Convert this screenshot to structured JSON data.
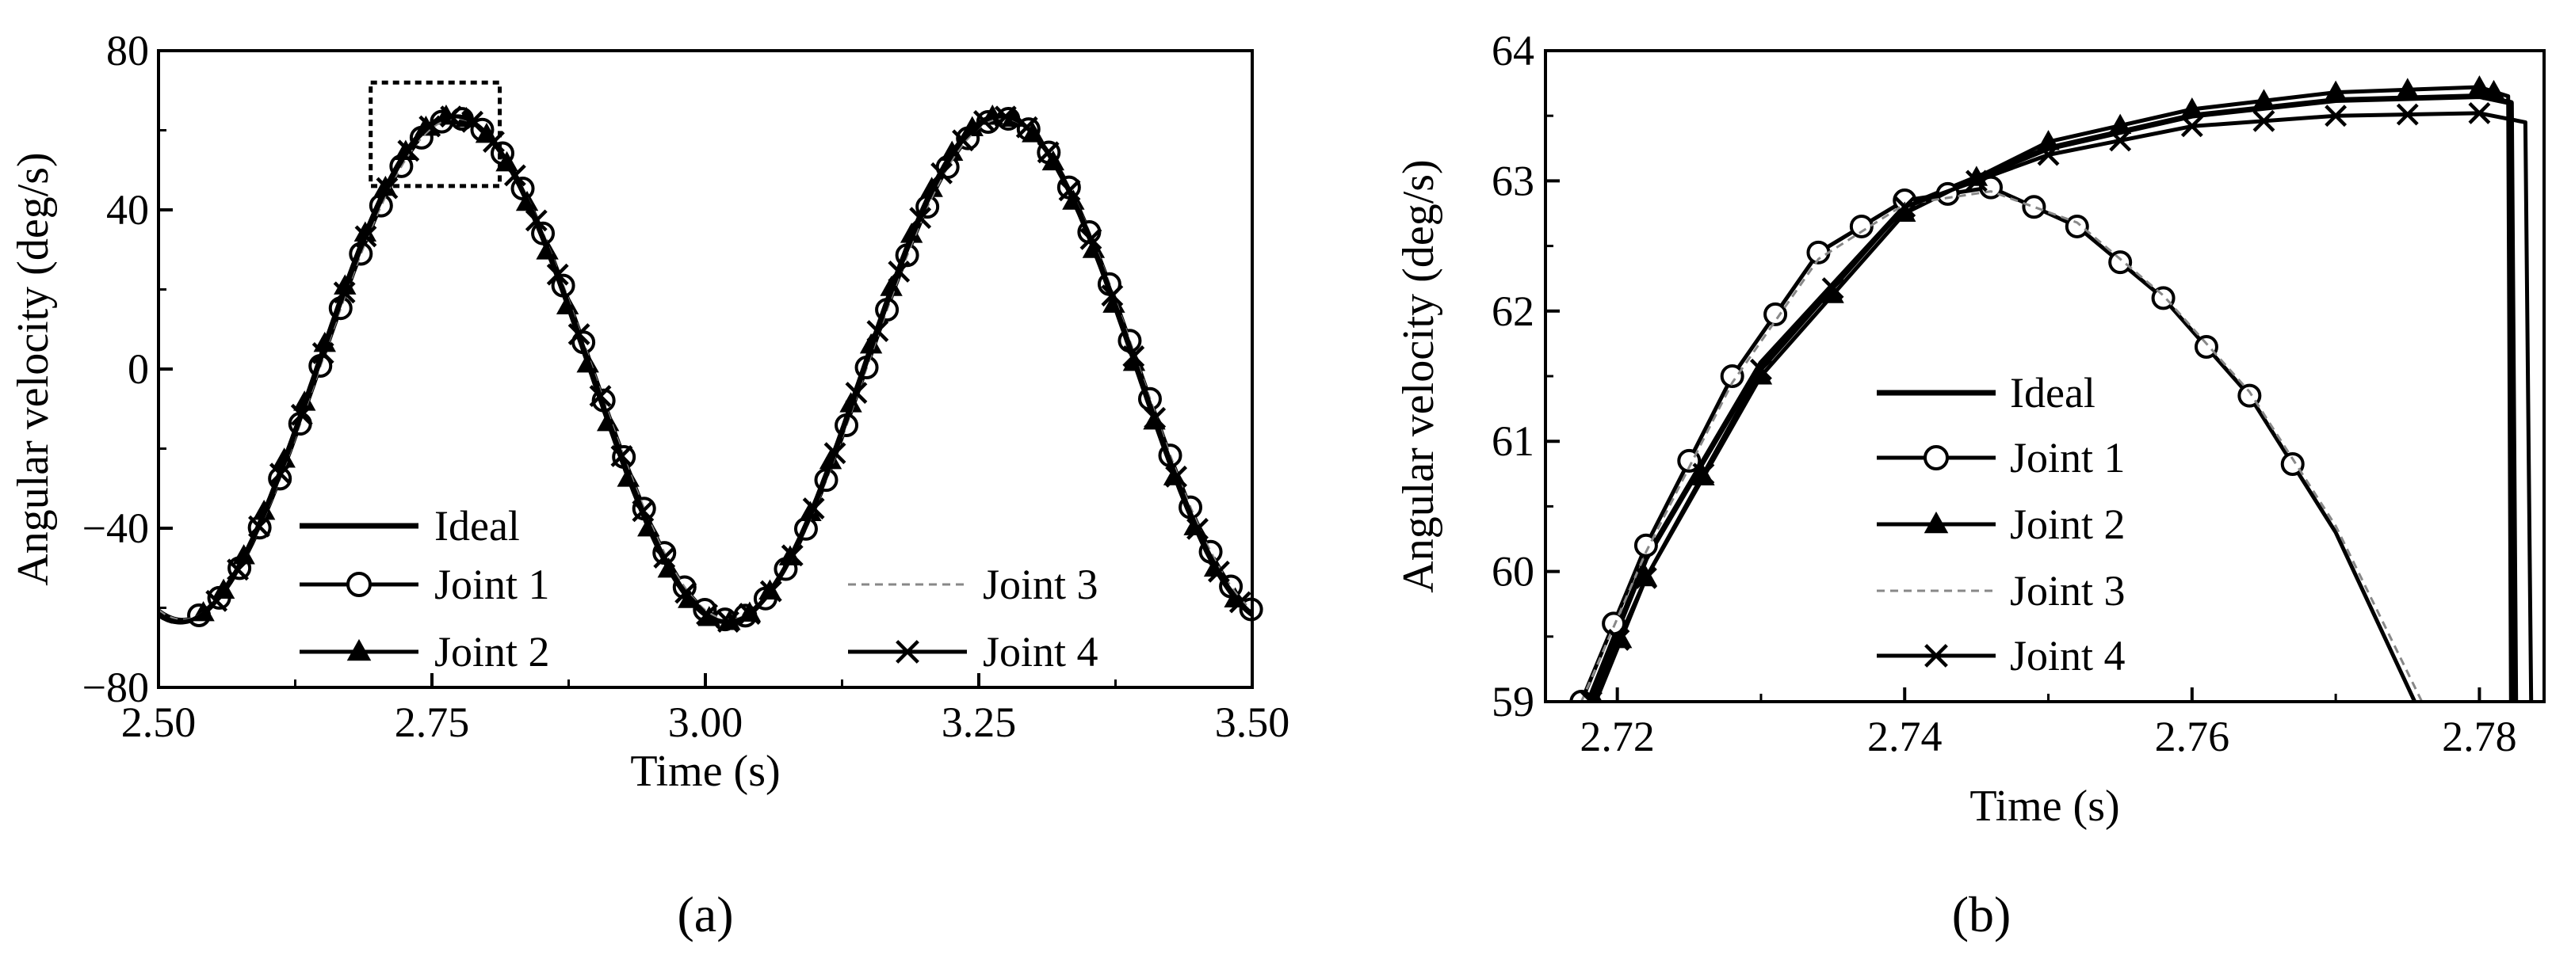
{
  "chart_data": [
    {
      "type": "line",
      "panel_label": "(a)",
      "xlabel": "Time (s)",
      "ylabel": "Angular velocity (deg/s)",
      "xlim": [
        2.5,
        3.5
      ],
      "ylim": [
        -80,
        80
      ],
      "xticks": [
        "2.50",
        "2.75",
        "3.00",
        "3.25",
        "3.50"
      ],
      "yticks": [
        "80",
        "40",
        "0",
        "−40",
        "−80"
      ],
      "legend": [
        "Ideal",
        "Joint 1",
        "Joint 2",
        "Joint 3",
        "Joint 4"
      ],
      "legend_placement": "bottom, two groups",
      "grid": false,
      "annotation": "dashed box around the peak near t = 2.75 s",
      "annotation_box": {
        "x": [
          2.694,
          2.812
        ],
        "y": [
          46,
          72
        ]
      },
      "series": [
        {
          "name": "Ideal",
          "x": [
            2.5,
            2.54,
            3.0,
            3.04,
            3.5
          ],
          "values": [
            -63.2,
            -63.2,
            -63.2,
            -63.2,
            -63.2
          ],
          "shape": "sinusoid, period 0.5 s, amplitude 63.5, minima at 2.52 and 3.02, maxima at 2.77 and 3.27"
        },
        {
          "name": "Joint 1",
          "marker": "open-circle",
          "x_start": 2.5,
          "x_end": 3.5,
          "amplitude": 63.0
        },
        {
          "name": "Joint 2",
          "marker": "filled-triangle",
          "x_start": 2.5,
          "x_end": 3.5,
          "amplitude": 63.7
        },
        {
          "name": "Joint 3",
          "marker": "none",
          "style": "dashed-gray",
          "x_start": 2.5,
          "x_end": 3.5,
          "amplitude": 63.0
        },
        {
          "name": "Joint 4",
          "marker": "cross",
          "x_start": 2.5,
          "x_end": 3.5,
          "amplitude": 63.5
        }
      ]
    },
    {
      "type": "line",
      "panel_label": "(b)",
      "xlabel": "Time (s)",
      "ylabel": "Angular velocity (deg/s)",
      "xlim": [
        2.715,
        2.7845
      ],
      "ylim": [
        59,
        64
      ],
      "xticks": [
        "2.72",
        "2.74",
        "2.76",
        "2.78"
      ],
      "yticks": [
        "64",
        "63",
        "62",
        "61",
        "60",
        "59"
      ],
      "legend": [
        "Ideal",
        "Joint 1",
        "Joint 2",
        "Joint 3",
        "Joint 4"
      ],
      "legend_placement": "center-left",
      "grid": false,
      "series": [
        {
          "name": "Ideal",
          "x": [
            2.718,
            2.722,
            2.73,
            2.74,
            2.75,
            2.76,
            2.77,
            2.78,
            2.7822,
            2.7825
          ],
          "values": [
            59.0,
            60.1,
            61.6,
            62.8,
            63.25,
            63.5,
            63.62,
            63.65,
            63.6,
            59.0
          ]
        },
        {
          "name": "Joint 1",
          "marker": "open-circle",
          "x": [
            2.7175,
            2.722,
            2.728,
            2.734,
            2.74,
            2.746,
            2.752,
            2.758,
            2.764,
            2.77,
            2.7755
          ],
          "values": [
            59.0,
            60.2,
            61.5,
            62.45,
            62.85,
            62.95,
            62.65,
            62.1,
            61.35,
            60.3,
            59.0
          ]
        },
        {
          "name": "Joint 2",
          "marker": "filled-triangle",
          "x": [
            2.7185,
            2.722,
            2.73,
            2.74,
            2.75,
            2.76,
            2.77,
            2.78,
            2.782,
            2.7822
          ],
          "values": [
            59.0,
            59.95,
            61.5,
            62.75,
            63.3,
            63.55,
            63.68,
            63.72,
            63.65,
            59.0
          ]
        },
        {
          "name": "Joint 3",
          "style": "dashed-gray",
          "x": [
            2.7175,
            2.722,
            2.728,
            2.734,
            2.74,
            2.746,
            2.752,
            2.758,
            2.764,
            2.77,
            2.776
          ],
          "values": [
            59.0,
            60.15,
            61.45,
            62.4,
            62.82,
            62.92,
            62.68,
            62.12,
            61.38,
            60.35,
            59.0
          ]
        },
        {
          "name": "Joint 4",
          "marker": "cross",
          "x": [
            2.7182,
            2.722,
            2.73,
            2.74,
            2.75,
            2.76,
            2.77,
            2.78,
            2.7832,
            2.7836
          ],
          "values": [
            59.0,
            59.95,
            61.55,
            62.8,
            63.2,
            63.42,
            63.5,
            63.52,
            63.45,
            59.0
          ]
        }
      ]
    }
  ]
}
